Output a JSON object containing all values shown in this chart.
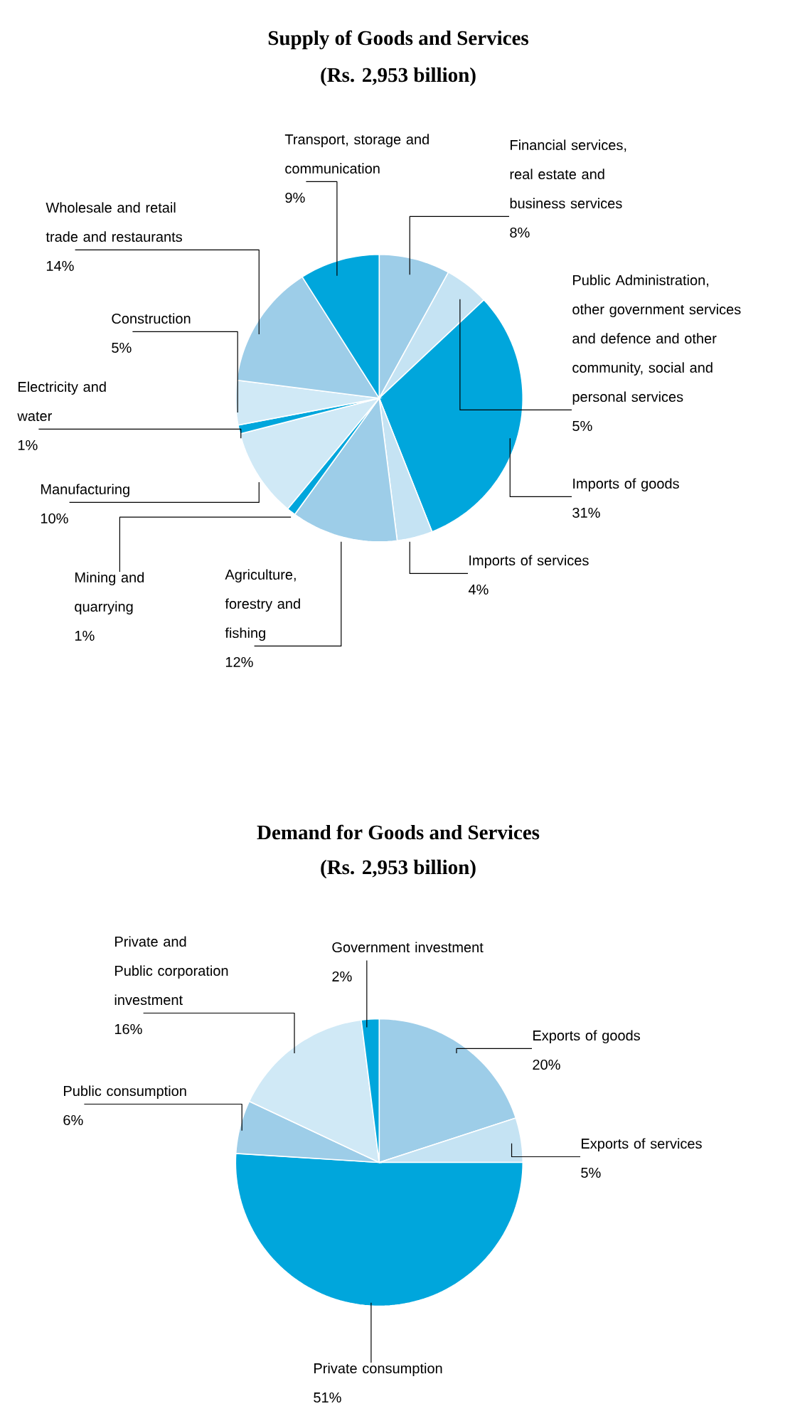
{
  "chart_data": [
    {
      "type": "pie",
      "title": "Supply of Goods and Services",
      "subtitle": "(Rs. 2,953 billion)",
      "categories": [
        "Financial services, real estate and business services",
        "Public Administration, other government services and defence and other community, social and personal services",
        "Imports of goods",
        "Imports of services",
        "Agriculture, forestry and fishing",
        "Mining and quarrying",
        "Manufacturing",
        "Electricity and water",
        "Construction",
        "Wholesale and retail trade and restaurants",
        "Transport, storage and communication"
      ],
      "values": [
        8,
        5,
        31,
        4,
        12,
        1,
        10,
        1,
        5,
        14,
        9
      ],
      "value_labels": [
        "8%",
        "5%",
        "31%",
        "4%",
        "12%",
        "1%",
        "10%",
        "1%",
        "5%",
        "14%",
        "9%"
      ],
      "colors": [
        "#9dcde8",
        "#c5e3f3",
        "#00a6dc",
        "#c5e3f3",
        "#9dcde8",
        "#00a6dc",
        "#d0e9f6",
        "#00a6dc",
        "#d0e9f6",
        "#9dcde8",
        "#00a6dc"
      ]
    },
    {
      "type": "pie",
      "title": "Demand for Goods and Services",
      "subtitle": "(Rs. 2,953 billion)",
      "categories": [
        "Exports of goods",
        "Exports of services",
        "Private consumption",
        "Public consumption",
        "Private and Public corporation investment",
        "Government investment"
      ],
      "values": [
        20,
        5,
        51,
        6,
        16,
        2
      ],
      "value_labels": [
        "20%",
        "5%",
        "51%",
        "6%",
        "16%",
        "2%"
      ],
      "colors": [
        "#9dcde8",
        "#c5e3f3",
        "#00a6dc",
        "#9dcde8",
        "#d0e9f6",
        "#00a6dc"
      ]
    }
  ]
}
